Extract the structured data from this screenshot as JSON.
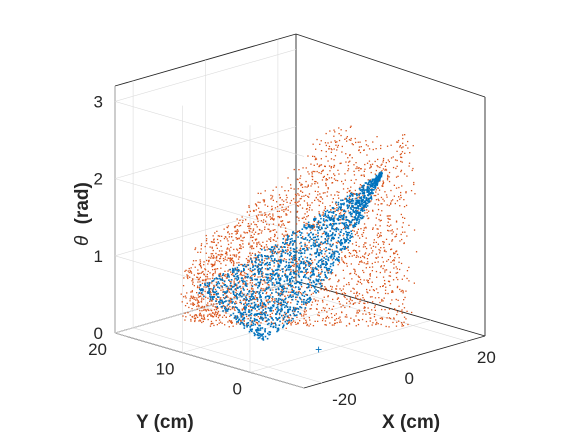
{
  "chart_data": {
    "type": "scatter",
    "dimensions": 3,
    "view": "3d-isometric",
    "grid": true,
    "box": true,
    "xlabel": "X (cm)",
    "ylabel": "Y (cm)",
    "zlabel_symbol": "θ",
    "zlabel_unit": "(rad)",
    "xlim": [
      -25,
      25
    ],
    "ylim": [
      -8,
      20
    ],
    "zlim": [
      0,
      3.2
    ],
    "x_ticks": [
      {
        "value": -20,
        "label": "-20"
      },
      {
        "value": 0,
        "label": "0"
      },
      {
        "value": 20,
        "label": "20"
      }
    ],
    "y_ticks": [
      {
        "value": 0,
        "label": "0"
      },
      {
        "value": 10,
        "label": "10"
      },
      {
        "value": 20,
        "label": "20"
      }
    ],
    "z_ticks": [
      {
        "value": 0,
        "label": "0"
      },
      {
        "value": 1,
        "label": "1"
      },
      {
        "value": 2,
        "label": "2"
      },
      {
        "value": 3,
        "label": "3"
      }
    ],
    "series": [
      {
        "color": "#D95319",
        "marker": "dot",
        "description_points": [
          {
            "x": -4,
            "y": 16,
            "z": 1.0
          },
          {
            "x": 10,
            "y": 8,
            "z": 2.6
          },
          {
            "x": 16,
            "y": 2,
            "z": 2.8
          },
          {
            "x": -8,
            "y": 14,
            "z": 0.3
          },
          {
            "x": 12,
            "y": 0,
            "z": 1.5
          }
        ]
      },
      {
        "color": "#0072BD",
        "marker": "plus",
        "description_points": [
          {
            "x": -9,
            "y": 17,
            "z": 0.45
          },
          {
            "x": 8,
            "y": 6,
            "z": 1.8
          },
          {
            "x": 14,
            "y": 2,
            "z": 1.95
          },
          {
            "x": -8,
            "y": 2,
            "z": 0.05
          }
        ]
      }
    ]
  }
}
